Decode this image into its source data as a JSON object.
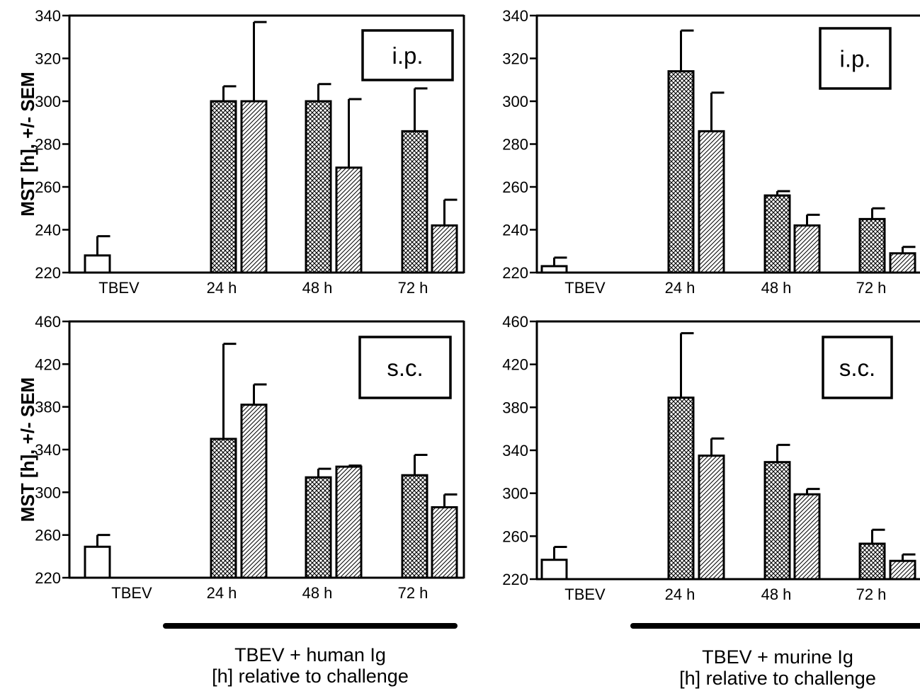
{
  "chart_data": [
    {
      "type": "bar",
      "panel": "top-left",
      "route_label": "i.p.",
      "ylabel": "MST [h], +/- SEM",
      "ylim": [
        220,
        340
      ],
      "yticks": [
        220,
        240,
        260,
        280,
        300,
        320,
        340
      ],
      "categories": [
        "TBEV",
        "24 h",
        "48 h",
        "72 h"
      ],
      "bars": [
        {
          "category": "TBEV",
          "pattern": "open",
          "value": 228,
          "sem": 9
        },
        {
          "category": "24 h",
          "pattern": "crosshatch",
          "value": 300,
          "sem": 7
        },
        {
          "category": "24 h",
          "pattern": "diagonal",
          "value": 300,
          "sem": 37
        },
        {
          "category": "48 h",
          "pattern": "crosshatch",
          "value": 300,
          "sem": 8
        },
        {
          "category": "48 h",
          "pattern": "diagonal",
          "value": 269,
          "sem": 32
        },
        {
          "category": "72 h",
          "pattern": "crosshatch",
          "value": 286,
          "sem": 20
        },
        {
          "category": "72 h",
          "pattern": "diagonal",
          "value": 242,
          "sem": 12
        }
      ]
    },
    {
      "type": "bar",
      "panel": "top-right",
      "route_label": "i.p.",
      "ylabel": "",
      "ylim": [
        220,
        340
      ],
      "yticks": [
        220,
        240,
        260,
        280,
        300,
        320,
        340
      ],
      "categories": [
        "TBEV",
        "24 h",
        "48 h",
        "72 h"
      ],
      "bars": [
        {
          "category": "TBEV",
          "pattern": "open",
          "value": 223,
          "sem": 4
        },
        {
          "category": "24 h",
          "pattern": "crosshatch",
          "value": 314,
          "sem": 19
        },
        {
          "category": "24 h",
          "pattern": "diagonal",
          "value": 286,
          "sem": 18
        },
        {
          "category": "48 h",
          "pattern": "crosshatch",
          "value": 256,
          "sem": 2
        },
        {
          "category": "48 h",
          "pattern": "diagonal",
          "value": 242,
          "sem": 5
        },
        {
          "category": "72 h",
          "pattern": "crosshatch",
          "value": 245,
          "sem": 5
        },
        {
          "category": "72 h",
          "pattern": "diagonal",
          "value": 229,
          "sem": 3
        }
      ]
    },
    {
      "type": "bar",
      "panel": "bottom-left",
      "route_label": "s.c.",
      "ylabel": "MST [h], +/- SEM",
      "ylim": [
        220,
        460
      ],
      "yticks": [
        220,
        260,
        300,
        340,
        380,
        420,
        460
      ],
      "categories": [
        "TBEV",
        "24 h",
        "48 h",
        "72 h"
      ],
      "bars": [
        {
          "category": "TBEV",
          "pattern": "open",
          "value": 249,
          "sem": 11
        },
        {
          "category": "24 h",
          "pattern": "crosshatch",
          "value": 350,
          "sem": 89
        },
        {
          "category": "24 h",
          "pattern": "diagonal",
          "value": 382,
          "sem": 19
        },
        {
          "category": "48 h",
          "pattern": "crosshatch",
          "value": 314,
          "sem": 8
        },
        {
          "category": "48 h",
          "pattern": "diagonal",
          "value": 324,
          "sem": 1
        },
        {
          "category": "72 h",
          "pattern": "crosshatch",
          "value": 316,
          "sem": 19
        },
        {
          "category": "72 h",
          "pattern": "diagonal",
          "value": 286,
          "sem": 12
        }
      ]
    },
    {
      "type": "bar",
      "panel": "bottom-right",
      "route_label": "s.c.",
      "ylabel": "",
      "ylim": [
        220,
        460
      ],
      "yticks": [
        220,
        260,
        300,
        340,
        380,
        420,
        460
      ],
      "categories": [
        "TBEV",
        "24 h",
        "48 h",
        "72 h"
      ],
      "bars": [
        {
          "category": "TBEV",
          "pattern": "open",
          "value": 238,
          "sem": 12
        },
        {
          "category": "24 h",
          "pattern": "crosshatch",
          "value": 389,
          "sem": 60
        },
        {
          "category": "24 h",
          "pattern": "diagonal",
          "value": 335,
          "sem": 16
        },
        {
          "category": "48 h",
          "pattern": "crosshatch",
          "value": 329,
          "sem": 16
        },
        {
          "category": "48 h",
          "pattern": "diagonal",
          "value": 299,
          "sem": 5
        },
        {
          "category": "72 h",
          "pattern": "crosshatch",
          "value": 253,
          "sem": 13
        },
        {
          "category": "72 h",
          "pattern": "diagonal",
          "value": 237,
          "sem": 6
        }
      ]
    }
  ],
  "captions": {
    "left": {
      "line1": "TBEV + human Ig",
      "line2": "[h] relative to challenge"
    },
    "right": {
      "line1": "TBEV + murine Ig",
      "line2": "[h] relative to challenge"
    }
  }
}
